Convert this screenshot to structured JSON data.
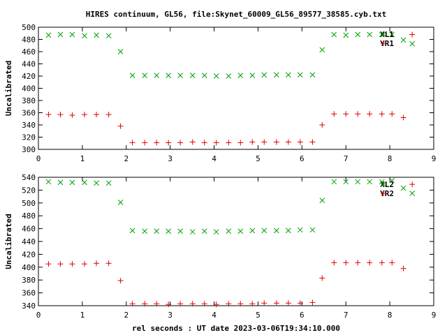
{
  "chart_data": {
    "title": "HIRES continuum, GL56, file:Skynet_60009_GL56_89577_38585.cyb.txt",
    "xlabel": "rel seconds : UT date 2023-03-06T19:34:10.000",
    "x_ticks": [
      0,
      1,
      2,
      3,
      4,
      5,
      6,
      7,
      8,
      9
    ],
    "xlim": [
      0,
      9
    ],
    "colors": {
      "green": "#00a000",
      "red": "#e00000",
      "axes": "#000000"
    },
    "panels": [
      {
        "type": "scatter",
        "ylabel": "Uncalibrated",
        "ylim": [
          300,
          500
        ],
        "y_ticks": [
          300,
          320,
          340,
          360,
          380,
          400,
          420,
          440,
          460,
          480,
          500
        ],
        "grid": false,
        "legend_position": "top-right",
        "series": [
          {
            "name": "XL1",
            "marker": "x",
            "color": "#00a000",
            "x": [
              0.23,
              0.5,
              0.77,
              1.05,
              1.32,
              1.6,
              1.87,
              2.14,
              2.42,
              2.69,
              2.96,
              3.23,
              3.51,
              3.78,
              4.05,
              4.33,
              4.6,
              4.87,
              5.14,
              5.42,
              5.69,
              5.96,
              6.24,
              6.46,
              6.73,
              7.0,
              7.27,
              7.54,
              7.82,
              8.05,
              8.31,
              8.51
            ],
            "y": [
              487,
              488,
              488,
              486,
              487,
              486,
              460,
              421,
              421,
              421,
              421,
              421,
              421,
              421,
              420,
              420,
              421,
              421,
              422,
              422,
              422,
              422,
              422,
              463,
              488,
              487,
              488,
              488,
              488,
              488,
              479,
              473
            ]
          },
          {
            "name": "YR1",
            "marker": "+",
            "color": "#e00000",
            "x": [
              0.23,
              0.5,
              0.77,
              1.05,
              1.32,
              1.6,
              1.87,
              2.14,
              2.42,
              2.69,
              2.96,
              3.23,
              3.51,
              3.78,
              4.05,
              4.33,
              4.6,
              4.87,
              5.14,
              5.42,
              5.69,
              5.96,
              6.24,
              6.46,
              6.73,
              7.0,
              7.27,
              7.54,
              7.82,
              8.05,
              8.31,
              8.51
            ],
            "y": [
              357,
              357,
              356,
              357,
              357,
              357,
              338,
              311,
              311,
              311,
              311,
              311,
              312,
              311,
              311,
              311,
              311,
              312,
              312,
              312,
              312,
              312,
              312,
              340,
              358,
              358,
              358,
              358,
              358,
              358,
              352,
              488
            ]
          }
        ]
      },
      {
        "type": "scatter",
        "ylabel": "Uncalibrated",
        "ylim": [
          340,
          540
        ],
        "y_ticks": [
          340,
          360,
          380,
          400,
          420,
          440,
          460,
          480,
          500,
          520,
          540
        ],
        "grid": false,
        "legend_position": "top-right",
        "series": [
          {
            "name": "XL2",
            "marker": "x",
            "color": "#00a000",
            "x": [
              0.23,
              0.5,
              0.77,
              1.05,
              1.32,
              1.6,
              1.87,
              2.14,
              2.42,
              2.69,
              2.96,
              3.23,
              3.51,
              3.78,
              4.05,
              4.33,
              4.6,
              4.87,
              5.14,
              5.42,
              5.69,
              5.96,
              6.24,
              6.46,
              6.73,
              7.0,
              7.27,
              7.54,
              7.82,
              8.05,
              8.31,
              8.51
            ],
            "y": [
              533,
              532,
              532,
              532,
              531,
              531,
              501,
              457,
              456,
              456,
              456,
              456,
              455,
              456,
              455,
              456,
              456,
              457,
              457,
              457,
              457,
              458,
              458,
              504,
              533,
              533,
              533,
              533,
              533,
              535,
              523,
              515
            ]
          },
          {
            "name": "YR2",
            "marker": "+",
            "color": "#e00000",
            "x": [
              0.23,
              0.5,
              0.77,
              1.05,
              1.32,
              1.6,
              1.87,
              2.14,
              2.42,
              2.69,
              2.96,
              3.23,
              3.51,
              3.78,
              4.05,
              4.33,
              4.6,
              4.87,
              5.14,
              5.42,
              5.69,
              5.96,
              6.24,
              6.46,
              6.73,
              7.0,
              7.27,
              7.54,
              7.82,
              8.05,
              8.31,
              8.51
            ],
            "y": [
              405,
              405,
              405,
              405,
              406,
              406,
              379,
              343,
              343,
              343,
              342,
              343,
              343,
              343,
              342,
              343,
              343,
              343,
              344,
              344,
              344,
              344,
              345,
              383,
              407,
              407,
              407,
              407,
              407,
              407,
              398,
              529
            ]
          }
        ]
      }
    ]
  }
}
